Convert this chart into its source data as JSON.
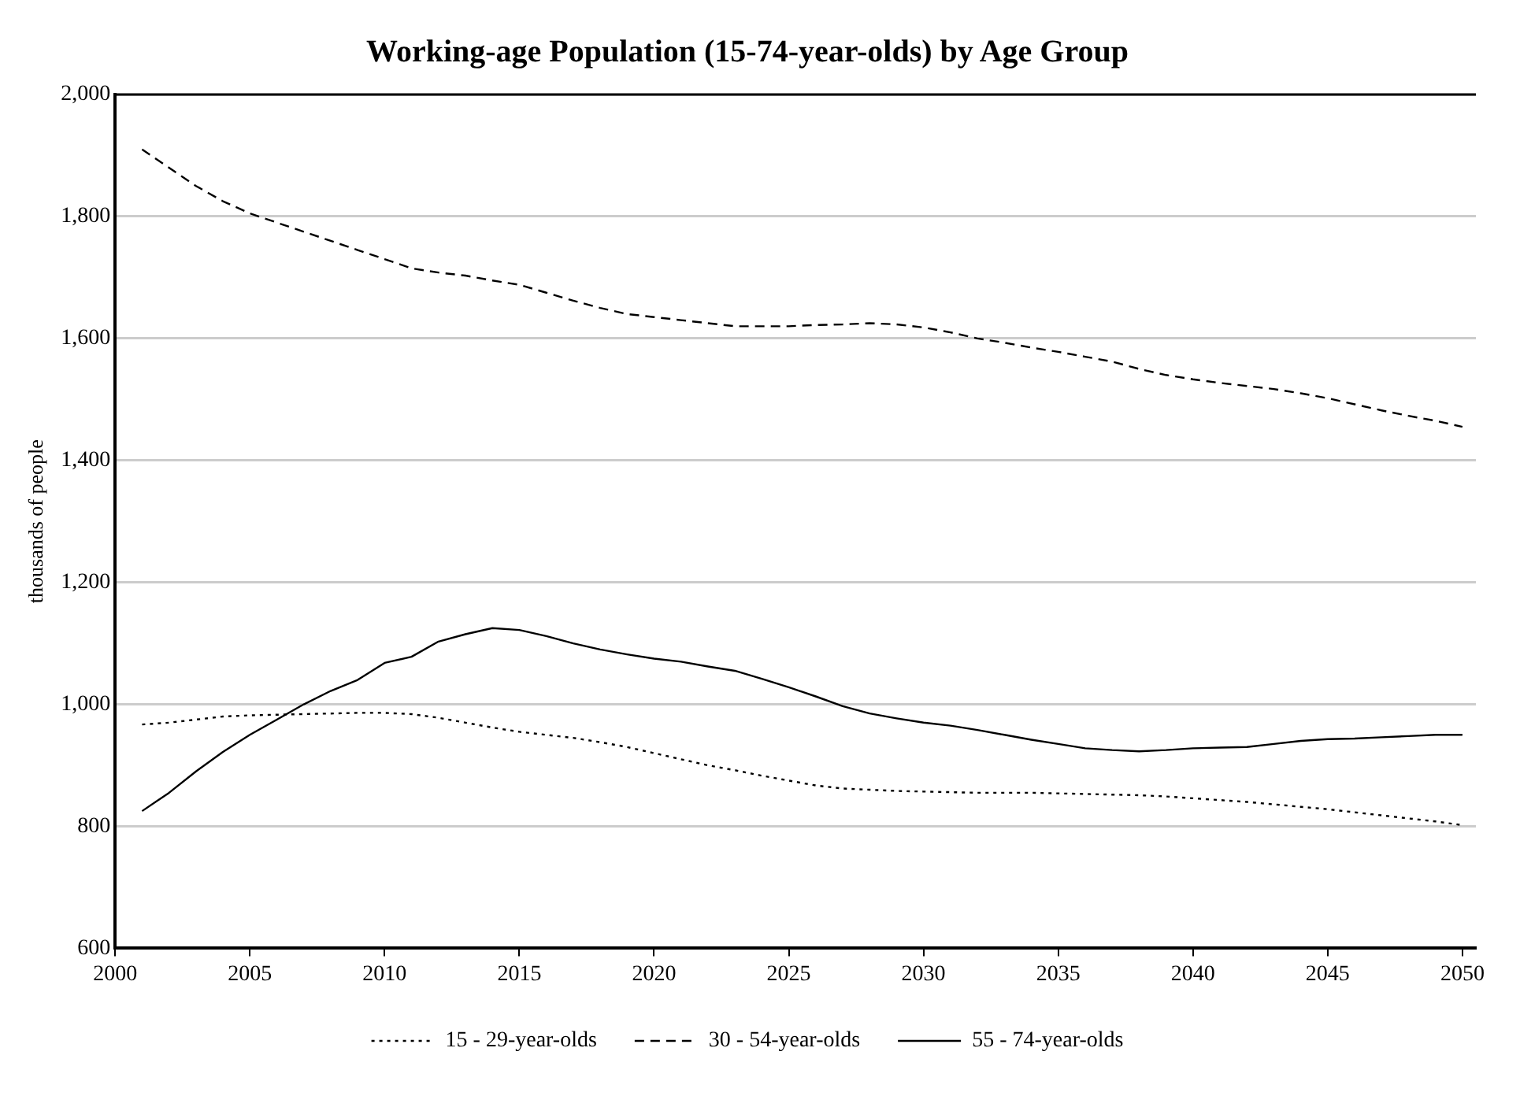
{
  "chart_data": {
    "type": "line",
    "title": "Working-age Population (15-74-year-olds) by Age Group",
    "ylabel": "thousands of people",
    "x": [
      2001,
      2002,
      2003,
      2004,
      2005,
      2006,
      2007,
      2008,
      2009,
      2010,
      2011,
      2012,
      2013,
      2014,
      2015,
      2016,
      2017,
      2018,
      2019,
      2020,
      2021,
      2022,
      2023,
      2024,
      2025,
      2026,
      2027,
      2028,
      2029,
      2030,
      2031,
      2032,
      2033,
      2034,
      2035,
      2036,
      2037,
      2038,
      2039,
      2040,
      2041,
      2042,
      2043,
      2044,
      2045,
      2046,
      2047,
      2048,
      2049,
      2050
    ],
    "series": [
      {
        "name": "15 - 29-year-olds",
        "color": "#000000",
        "line_style": "dotted",
        "values": [
          967,
          970,
          975,
          980,
          982,
          983,
          984,
          985,
          986,
          986,
          984,
          978,
          970,
          962,
          955,
          950,
          945,
          938,
          930,
          920,
          910,
          900,
          892,
          883,
          875,
          867,
          862,
          860,
          858,
          857,
          856,
          855,
          855,
          855,
          854,
          853,
          852,
          851,
          849,
          846,
          843,
          840,
          836,
          832,
          828,
          823,
          818,
          813,
          808,
          802
        ]
      },
      {
        "name": "30 - 54-year-olds",
        "color": "#000000",
        "line_style": "dashed",
        "values": [
          1910,
          1880,
          1850,
          1825,
          1805,
          1790,
          1775,
          1760,
          1745,
          1730,
          1715,
          1708,
          1703,
          1695,
          1688,
          1675,
          1662,
          1650,
          1640,
          1635,
          1630,
          1625,
          1620,
          1620,
          1620,
          1622,
          1623,
          1625,
          1623,
          1618,
          1610,
          1600,
          1593,
          1585,
          1578,
          1570,
          1562,
          1550,
          1540,
          1533,
          1527,
          1522,
          1517,
          1510,
          1502,
          1492,
          1482,
          1473,
          1465,
          1455
        ]
      },
      {
        "name": "55 - 74-year-olds",
        "color": "#000000",
        "line_style": "solid",
        "values": [
          825,
          855,
          890,
          922,
          950,
          975,
          1000,
          1022,
          1040,
          1068,
          1078,
          1103,
          1115,
          1125,
          1122,
          1112,
          1100,
          1090,
          1082,
          1075,
          1070,
          1062,
          1055,
          1042,
          1028,
          1013,
          997,
          985,
          977,
          970,
          965,
          958,
          950,
          942,
          935,
          928,
          925,
          923,
          925,
          928,
          929,
          930,
          935,
          940,
          943,
          944,
          946,
          948,
          950,
          950
        ]
      }
    ],
    "xlim": [
      2000,
      2050.5
    ],
    "xticks": [
      2000,
      2005,
      2010,
      2015,
      2020,
      2025,
      2030,
      2035,
      2040,
      2045,
      2050
    ],
    "ylim": [
      600,
      2000
    ],
    "yticks": [
      {
        "value": 600,
        "label": "600"
      },
      {
        "value": 800,
        "label": "800"
      },
      {
        "value": 1000,
        "label": "1,000"
      },
      {
        "value": 1200,
        "label": "1,200"
      },
      {
        "value": 1400,
        "label": "1,400"
      },
      {
        "value": 1600,
        "label": "1,600"
      },
      {
        "value": 1800,
        "label": "1,800"
      },
      {
        "value": 2000,
        "label": "2,000"
      }
    ],
    "grid": "y",
    "legend": "bottom",
    "marker": "none"
  }
}
